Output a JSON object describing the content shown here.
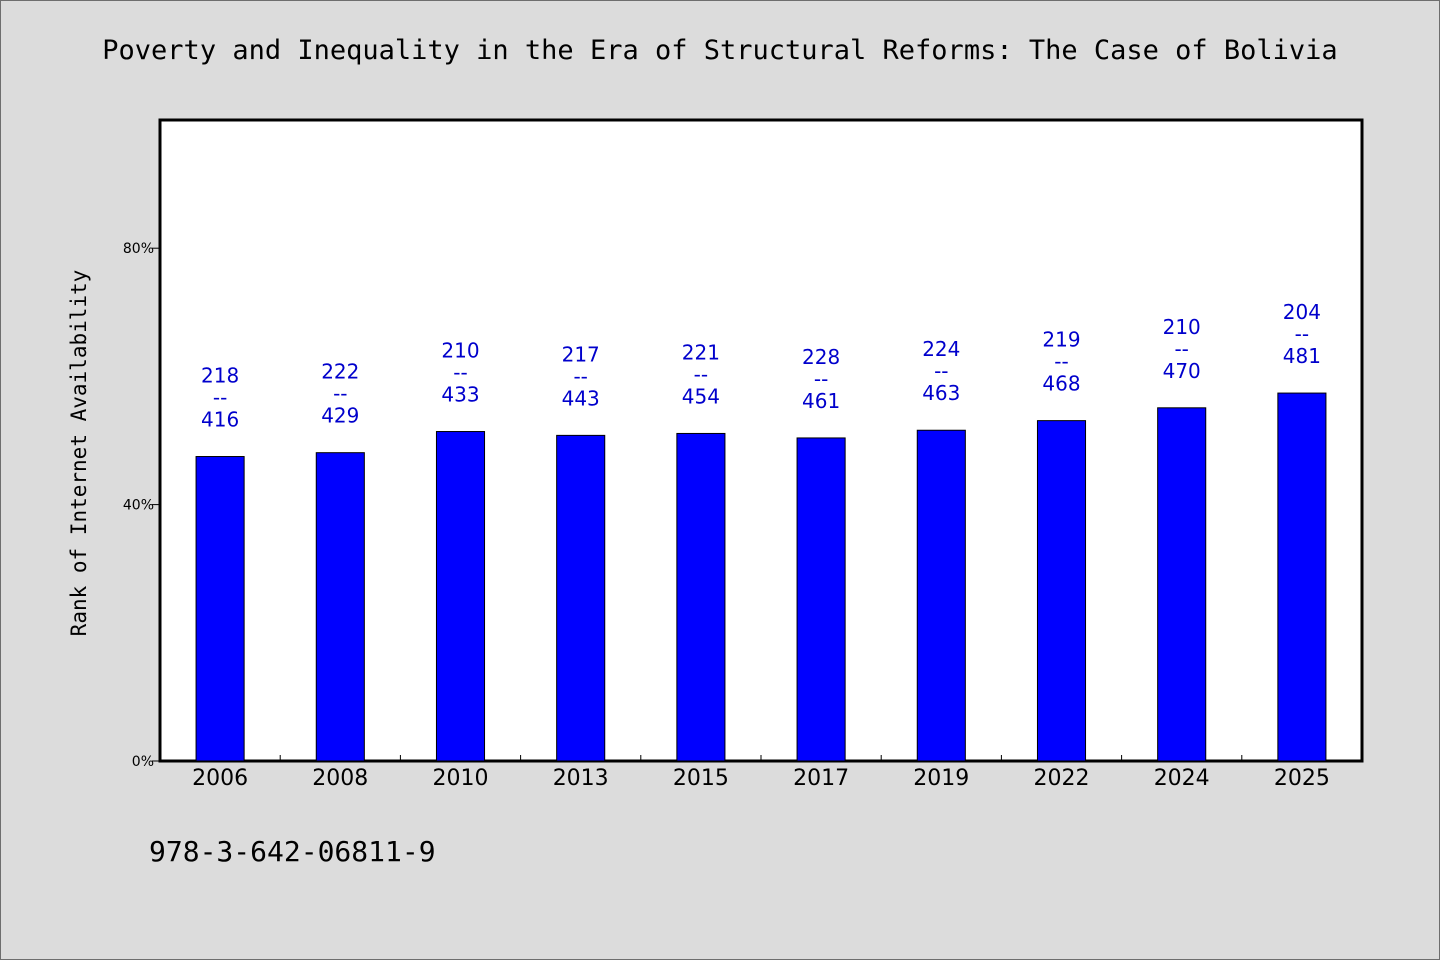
{
  "title": "Poverty and Inequality in the Era of Structural Reforms: The Case of Bolivia",
  "footer_code": "978-3-642-06811-9",
  "colors": {
    "background": "#dcdcdc",
    "plot_background": "#ffffff",
    "bar": "#0000ff",
    "label": "#0000cc"
  },
  "chart_data": {
    "type": "bar",
    "title": "Poverty and Inequality in the Era of Structural Reforms: The Case of Bolivia",
    "xlabel": "",
    "ylabel": "Rank of Internet Availability",
    "categories": [
      "2006",
      "2008",
      "2010",
      "2013",
      "2015",
      "2017",
      "2019",
      "2022",
      "2024",
      "2025"
    ],
    "values": [
      47.5,
      48.1,
      51.4,
      50.8,
      51.1,
      50.4,
      51.6,
      53.1,
      55.1,
      57.4
    ],
    "value_unit": "%",
    "data_labels": [
      {
        "top": "218",
        "mid": "--",
        "bottom": "416"
      },
      {
        "top": "222",
        "mid": "--",
        "bottom": "429"
      },
      {
        "top": "210",
        "mid": "--",
        "bottom": "433"
      },
      {
        "top": "217",
        "mid": "--",
        "bottom": "443"
      },
      {
        "top": "221",
        "mid": "--",
        "bottom": "454"
      },
      {
        "top": "228",
        "mid": "--",
        "bottom": "461"
      },
      {
        "top": "224",
        "mid": "--",
        "bottom": "463"
      },
      {
        "top": "219",
        "mid": "--",
        "bottom": "468"
      },
      {
        "top": "210",
        "mid": "--",
        "bottom": "470"
      },
      {
        "top": "204",
        "mid": "--",
        "bottom": "481"
      }
    ],
    "ylim": [
      0,
      100
    ],
    "yticks": [
      0,
      40,
      80
    ],
    "ytick_labels": [
      "0%",
      "40%",
      "80%"
    ],
    "grid": false,
    "legend": "none"
  }
}
